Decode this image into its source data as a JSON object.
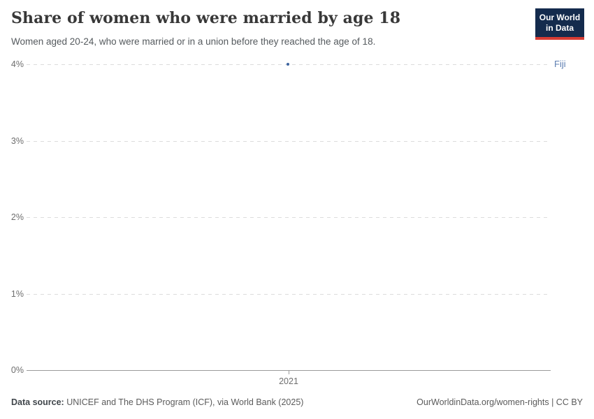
{
  "header": {
    "title": "Share of women who were married by age 18",
    "subtitle": "Women aged 20-24, who were married or in a union before they reached the age of 18."
  },
  "logo": {
    "line1": "Our World",
    "line2": "in Data",
    "bg_color": "#142b4d",
    "accent_color": "#d73c34"
  },
  "chart_data": {
    "type": "scatter",
    "title": "Share of women who were married by age 18",
    "x": [
      2021
    ],
    "series": [
      {
        "name": "Fiji",
        "values": [
          4
        ],
        "color": "#3d649f",
        "label_color": "#5e7fb2"
      }
    ],
    "xlabel": "",
    "ylabel": "",
    "ylim": [
      0,
      4
    ],
    "yticks": [
      0,
      1,
      2,
      3,
      4
    ],
    "ytick_labels": [
      "0%",
      "1%",
      "2%",
      "3%",
      "4%"
    ],
    "xticks": [
      2021
    ],
    "xtick_labels": [
      "2021"
    ],
    "grid": "horizontal-dashed",
    "legend_position": "right-entity-label",
    "entity_label": "Fiji"
  },
  "footer": {
    "source_label": "Data source:",
    "source_text": " UNICEF and The DHS Program (ICF), via World Bank (2025)",
    "link_text": "OurWorldinData.org/women-rights | CC BY"
  }
}
